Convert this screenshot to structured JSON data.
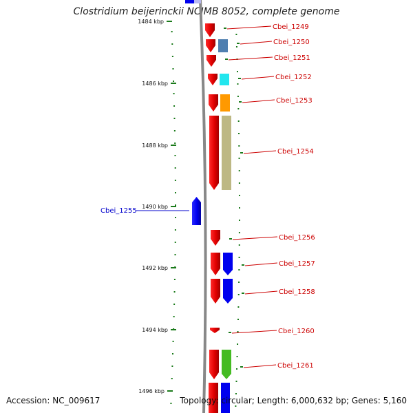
{
  "title": "Clostridium beijerinckii NCIMB 8052, complete genome",
  "footer": {
    "accession": "Accession: NC_009617",
    "summary": "Topology: circular; Length: 6,000,632 bp; Genes: 5,160"
  },
  "colors": {
    "forward": "#e00000",
    "reverse": "#0000ee",
    "label_forward": "#cc0000",
    "label_reverse": "#0000cc",
    "backbone": "#888888",
    "tick": "#1a7a1a"
  },
  "ticks": [
    "1484 kbp",
    "1486 kbp",
    "1488 kbp",
    "1490 kbp",
    "1492 kbp",
    "1494 kbp",
    "1496 kbp"
  ],
  "genes": [
    {
      "name": "Cbei_1249",
      "strand": "forward"
    },
    {
      "name": "Cbei_1250",
      "strand": "forward",
      "cog_color": "#4f7fb0"
    },
    {
      "name": "Cbei_1251",
      "strand": "forward"
    },
    {
      "name": "Cbei_1252",
      "strand": "forward",
      "cog_color": "#22e6ee"
    },
    {
      "name": "Cbei_1253",
      "strand": "forward",
      "cog_color": "#ff9900"
    },
    {
      "name": "Cbei_1254",
      "strand": "forward",
      "cog_color": "#bdb884"
    },
    {
      "name": "Cbei_1255",
      "strand": "reverse"
    },
    {
      "name": "Cbei_1256",
      "strand": "forward"
    },
    {
      "name": "Cbei_1257",
      "strand": "forward",
      "cog_color": "#0000ee"
    },
    {
      "name": "Cbei_1258",
      "strand": "forward",
      "cog_color": "#0000ee"
    },
    {
      "name": "Cbei_1260",
      "strand": "forward"
    },
    {
      "name": "Cbei_1261",
      "strand": "forward",
      "cog_color": "#44bb22"
    }
  ]
}
